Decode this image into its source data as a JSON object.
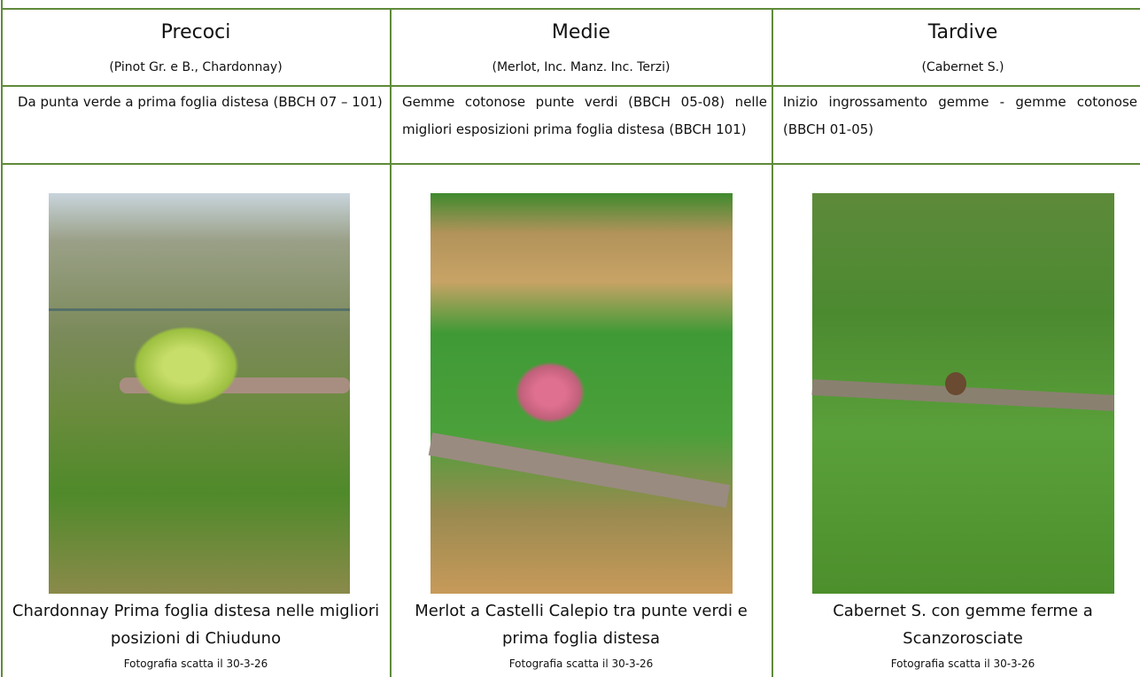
{
  "table": {
    "columns": [
      {
        "title": "Precoci",
        "subtitle": "(Pinot Gr. e B., Chardonnay)",
        "description": "Da punta verde a prima foglia distesa (BBCH 07 – 101)",
        "caption": "Chardonnay Prima foglia distesa nelle migliori posizioni di Chiuduno",
        "photo_note": "Fotografia scatta il 30-3-26"
      },
      {
        "title": "Medie",
        "subtitle": "(Merlot, Inc. Manz. Inc. Terzi)",
        "description": "Gemme cotonose punte verdi (BBCH 05-08) nelle migliori esposizioni prima foglia distesa (BBCH 101)",
        "caption": "Merlot a Castelli Calepio tra punte verdi e prima foglia distesa",
        "photo_note": "Fotografia scatta il 30-3-26"
      },
      {
        "title": "Tardive",
        "subtitle": "(Cabernet S.)",
        "description": "Inizio ingrossamento gemme - gemme cotonose (BBCH 01-05)",
        "caption": "Cabernet S. con gemme ferme a Scanzorosciate",
        "photo_note": "Fotografia scatta il 30-3-26"
      }
    ]
  }
}
